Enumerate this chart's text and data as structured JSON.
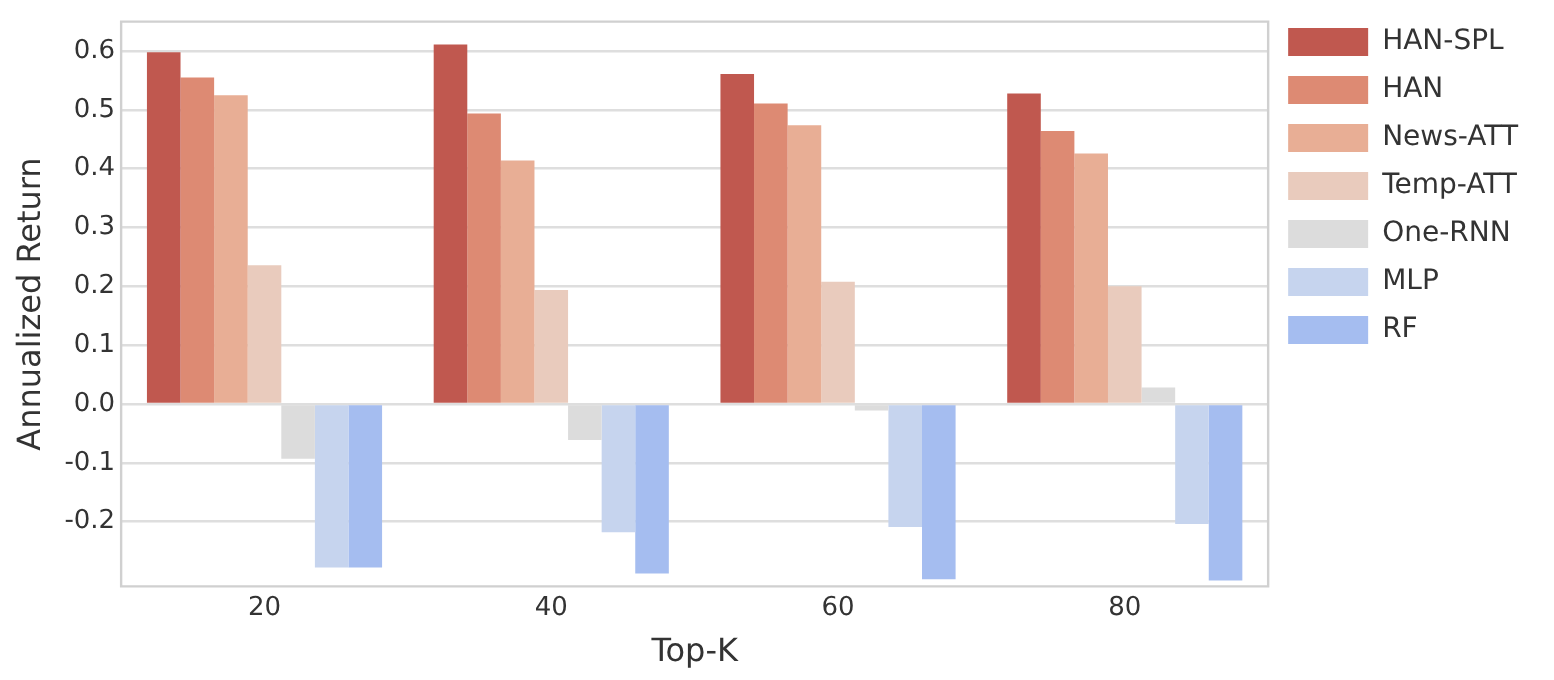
{
  "chart_data": {
    "type": "bar",
    "xlabel": "Top-K",
    "ylabel": "Annualized Return",
    "categories": [
      "20",
      "40",
      "60",
      "80"
    ],
    "series": [
      {
        "name": "HAN-SPL",
        "color": "#c0584f",
        "values": [
          0.598,
          0.611,
          0.561,
          0.528
        ]
      },
      {
        "name": "HAN",
        "color": "#dd8a73",
        "values": [
          0.555,
          0.494,
          0.511,
          0.464
        ]
      },
      {
        "name": "News-ATT",
        "color": "#e8ae95",
        "values": [
          0.525,
          0.414,
          0.474,
          0.426
        ]
      },
      {
        "name": "Temp-ATT",
        "color": "#e9cbbd",
        "values": [
          0.236,
          0.194,
          0.208,
          0.2
        ]
      },
      {
        "name": "One-RNN",
        "color": "#dcdcdc",
        "values": [
          -0.093,
          -0.061,
          -0.011,
          0.028
        ]
      },
      {
        "name": "MLP",
        "color": "#c6d4ee",
        "values": [
          -0.278,
          -0.218,
          -0.209,
          -0.204
        ]
      },
      {
        "name": "RF",
        "color": "#a5bdf0",
        "values": [
          -0.278,
          -0.288,
          -0.298,
          -0.3
        ]
      }
    ],
    "ylim": [
      -0.31,
      0.65
    ],
    "yticks": [
      {
        "value": -0.2,
        "label": "-0.2"
      },
      {
        "value": -0.1,
        "label": "-0.1"
      },
      {
        "value": 0,
        "label": "0.0"
      },
      0.1,
      0.2,
      0.3,
      0.4,
      0.5,
      0.6
    ],
    "grid": "y",
    "legend": "top right"
  }
}
